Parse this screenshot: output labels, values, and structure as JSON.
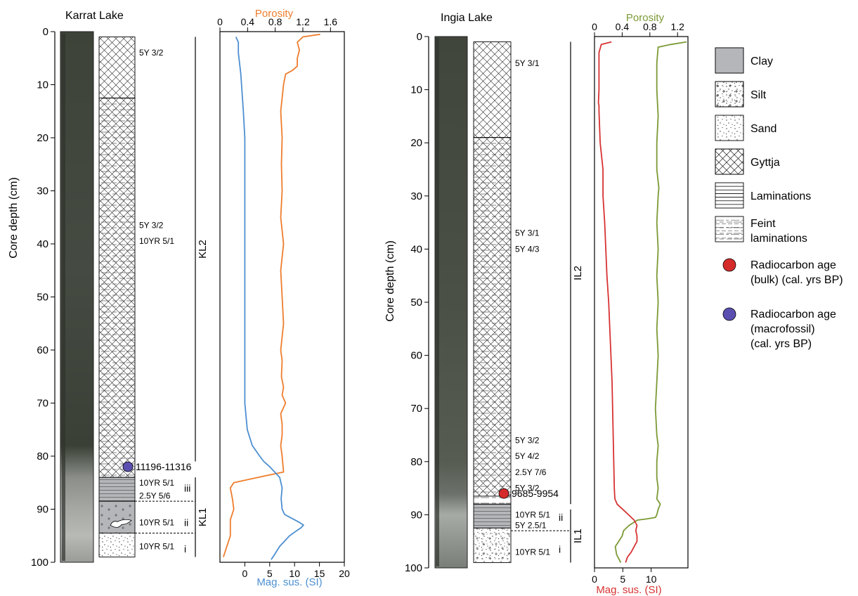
{
  "panels": [
    {
      "site": "Karrat Lake",
      "depth_axis": {
        "label": "Core depth (cm)",
        "ticks": [
          0,
          10,
          20,
          30,
          40,
          50,
          60,
          70,
          80,
          90,
          100
        ]
      },
      "facies": [
        {
          "type": "gyttja",
          "top": 1,
          "bottom": 12.5
        },
        {
          "type": "gyttja_feint",
          "top": 12.5,
          "bottom": 84
        },
        {
          "type": "clay_laminated",
          "top": 84,
          "bottom": 88.5
        },
        {
          "type": "clay_silt",
          "top": 88.5,
          "bottom": 94.5
        },
        {
          "type": "sand",
          "top": 94.5,
          "bottom": 99
        }
      ],
      "colour_codes": [
        {
          "text": "5Y 3/2",
          "depth": 4
        },
        {
          "text": "5Y 3/2",
          "depth": 36.5
        },
        {
          "text": "10YR 5/1",
          "depth": 39.5
        },
        {
          "text": "10YR 5/1",
          "depth": 85
        },
        {
          "text": "2.5Y 5/6",
          "depth": 87.5
        },
        {
          "text": "10YR 5/1",
          "depth": 92.5
        },
        {
          "text": "10YR 5/1",
          "depth": 97
        }
      ],
      "subunits": [
        {
          "text": "iii",
          "depth": 86
        },
        {
          "text": "ii",
          "depth": 92.5
        },
        {
          "text": "i",
          "depth": 97.5
        }
      ],
      "unit_boundaries": [
        88.5,
        94.5
      ],
      "dates": [
        {
          "label": "11196-11316",
          "depth": 82,
          "kind": "macrofossil"
        }
      ],
      "units": [
        {
          "name": "KL2",
          "top": 1,
          "bottom": 81
        },
        {
          "name": "KL1",
          "top": 84,
          "bottom": 99
        }
      ]
    },
    {
      "site": "Ingia Lake",
      "depth_axis": {
        "label": "Core depth (cm)",
        "ticks": [
          0,
          10,
          20,
          30,
          40,
          50,
          60,
          70,
          80,
          90,
          100
        ]
      },
      "facies": [
        {
          "type": "gyttja",
          "top": 1,
          "bottom": 19
        },
        {
          "type": "gyttja_feint",
          "top": 19,
          "bottom": 86.5
        },
        {
          "type": "feint",
          "top": 86.5,
          "bottom": 88
        },
        {
          "type": "clay_laminated",
          "top": 88,
          "bottom": 92.5
        },
        {
          "type": "silt",
          "top": 92.5,
          "bottom": 99
        }
      ],
      "colour_codes": [
        {
          "text": "5Y 3/1",
          "depth": 5
        },
        {
          "text": "5Y 3/1",
          "depth": 37
        },
        {
          "text": "5Y 4/3",
          "depth": 40
        },
        {
          "text": "5Y 3/2",
          "depth": 76
        },
        {
          "text": "5Y 4/2",
          "depth": 79
        },
        {
          "text": "2.5Y 7/6",
          "depth": 82
        },
        {
          "text": "5Y 3/2",
          "depth": 85
        },
        {
          "text": "10YR 5/1",
          "depth": 90
        },
        {
          "text": "5Y 2.5/1",
          "depth": 92
        },
        {
          "text": "10YR 5/1",
          "depth": 97
        }
      ],
      "subunits": [
        {
          "text": "ii",
          "depth": 90.5
        },
        {
          "text": "i",
          "depth": 96.5
        }
      ],
      "unit_boundaries": [
        93
      ],
      "dates": [
        {
          "label": "9685-9954",
          "depth": 86,
          "kind": "bulk"
        }
      ],
      "units": [
        {
          "name": "IL2",
          "top": 1,
          "bottom": 88
        },
        {
          "name": "IL1",
          "top": 89,
          "bottom": 99
        }
      ]
    }
  ],
  "chart_data": [
    {
      "type": "line",
      "site": "Karrat Lake",
      "y": {
        "label": "",
        "range": [
          0,
          100
        ],
        "inverted": true
      },
      "top_axis": {
        "label": "Porosity",
        "range": [
          0,
          1.8
        ],
        "ticks": [
          0,
          0.4,
          0.8,
          1.2,
          1.6
        ],
        "tick_labels": [
          "0",
          "0.4",
          "0.8",
          "1.2",
          "1.6"
        ],
        "color": "#ee7d2d"
      },
      "bottom_axis": {
        "label": "Mag. sus. (SI)",
        "range": [
          -5,
          20
        ],
        "ticks": [
          0,
          5,
          10,
          15,
          20
        ],
        "tick_labels": [
          "0",
          "5",
          "10",
          "15",
          "20"
        ],
        "color": "#4c8fd0"
      },
      "series": [
        {
          "name": "",
          "axis": "top",
          "color": "#ee7d2d",
          "x": [
            1.45,
            1.2,
            1.12,
            1.15,
            1.12,
            1.12,
            1.05,
            0.95,
            0.92,
            0.88,
            0.9,
            0.89,
            0.9,
            0.88,
            0.92,
            0.88,
            0.9,
            0.92,
            0.88,
            0.9,
            0.89,
            0.92,
            0.9,
            0.95,
            0.88,
            0.9,
            0.9,
            0.88,
            0.9,
            0.92,
            0.55,
            0.2,
            0.15,
            0.18,
            0.2,
            0.15,
            0.15,
            0.05
          ],
          "y": [
            0.5,
            1,
            2,
            3.5,
            5,
            6.5,
            7.3,
            8,
            10,
            15,
            20,
            25,
            30,
            35,
            40,
            45,
            50,
            55,
            60,
            62,
            65,
            67,
            68.5,
            70,
            72,
            74,
            76,
            78,
            80,
            83,
            84,
            85,
            86,
            88,
            90,
            92,
            95,
            99
          ]
        },
        {
          "name": "",
          "axis": "bottom",
          "color": "#4c8fd0",
          "x": [
            -1.8,
            -1.3,
            -1.3,
            -0.8,
            -0.3,
            0,
            0,
            0,
            0,
            0,
            0,
            0,
            0,
            0.5,
            1.5,
            3,
            3.8,
            5,
            6,
            7,
            7.5,
            7.3,
            7.5,
            8,
            9,
            10,
            11,
            11.8,
            11.3,
            10.5,
            9,
            7,
            6,
            5.3
          ],
          "y": [
            1,
            2,
            4,
            8,
            15,
            20,
            30,
            40,
            50,
            55,
            60,
            65,
            70,
            75,
            78,
            80,
            81,
            82,
            83,
            84,
            86,
            88,
            90,
            91,
            91.5,
            92,
            92.5,
            93,
            93.5,
            94,
            95,
            97,
            98.5,
            99.5
          ]
        }
      ]
    },
    {
      "type": "line",
      "site": "Ingia Lake",
      "y": {
        "label": "",
        "range": [
          0,
          100
        ],
        "inverted": true
      },
      "top_axis": {
        "label": "Porosity",
        "range": [
          0,
          1.35
        ],
        "ticks": [
          0,
          0.4,
          0.8,
          1.2
        ],
        "tick_labels": [
          "0",
          "0.4",
          "0.8",
          "1.2"
        ],
        "color": "#7b9a35"
      },
      "bottom_axis": {
        "label": "Mag. sus. (SI)",
        "range": [
          0,
          16.5
        ],
        "ticks": [
          0,
          5,
          10
        ],
        "tick_labels": [
          "0",
          "5",
          "10"
        ],
        "color": "#d73232"
      },
      "series": [
        {
          "name": "",
          "axis": "top",
          "color": "#7b9a35",
          "x": [
            1.33,
            1.1,
            0.92,
            0.9,
            0.9,
            0.92,
            0.9,
            0.9,
            0.93,
            0.92,
            0.9,
            0.92,
            0.9,
            0.92,
            0.9,
            0.92,
            0.9,
            0.88,
            0.9,
            0.92,
            0.9,
            0.9,
            0.92,
            0.9,
            0.95,
            0.92,
            0.9,
            0.88,
            0.75,
            0.62,
            0.5,
            0.42,
            0.4,
            0.35,
            0.3,
            0.32,
            0.38
          ],
          "y": [
            1,
            1.5,
            2,
            5,
            10,
            15,
            20,
            25,
            28.5,
            30,
            35,
            40,
            45,
            50,
            55,
            60,
            65,
            70,
            75,
            77,
            80,
            83,
            85,
            87,
            88,
            89,
            90,
            90.5,
            90.8,
            91,
            92,
            93,
            94,
            95,
            96,
            97.5,
            99
          ]
        },
        {
          "name": "",
          "axis": "bottom",
          "color": "#d73232",
          "x": [
            3,
            1.2,
            0.8,
            0.8,
            0.7,
            0.8,
            0.8,
            1,
            1.5,
            1.5,
            1.8,
            2,
            2.2,
            2.5,
            2.7,
            2.9,
            3.1,
            3.2,
            3.3,
            3.4,
            3.5,
            3.6,
            4,
            5,
            6,
            7,
            7.5,
            7.3,
            7.5,
            7.5,
            7,
            6.5,
            5.8,
            5.5
          ],
          "y": [
            1,
            1.5,
            3,
            10,
            12.5,
            13,
            14,
            20,
            25,
            30,
            35,
            40,
            45,
            50,
            55,
            60,
            65,
            70,
            75,
            80,
            85,
            87,
            88,
            89,
            90,
            91,
            92,
            93,
            94,
            95,
            96,
            97,
            98,
            99
          ]
        }
      ]
    }
  ],
  "legend": {
    "items": [
      {
        "key": "clay",
        "label": "Clay"
      },
      {
        "key": "silt",
        "label": "Silt"
      },
      {
        "key": "sand",
        "label": "Sand"
      },
      {
        "key": "gyttja",
        "label": "Gyttja"
      },
      {
        "key": "laminations",
        "label": "Laminations"
      },
      {
        "key": "feint",
        "label": "Feint laminations",
        "lines": [
          "Feint",
          "laminations"
        ]
      }
    ],
    "markers": [
      {
        "key": "bulk",
        "color": "#d42a2a",
        "lines": [
          "Radiocarbon age",
          "(bulk) (cal. yrs BP)"
        ]
      },
      {
        "key": "macrofossil",
        "color": "#5a4fb0",
        "lines": [
          "Radiocarbon age",
          "(macrofossil)",
          "(cal. yrs BP)"
        ]
      }
    ]
  }
}
